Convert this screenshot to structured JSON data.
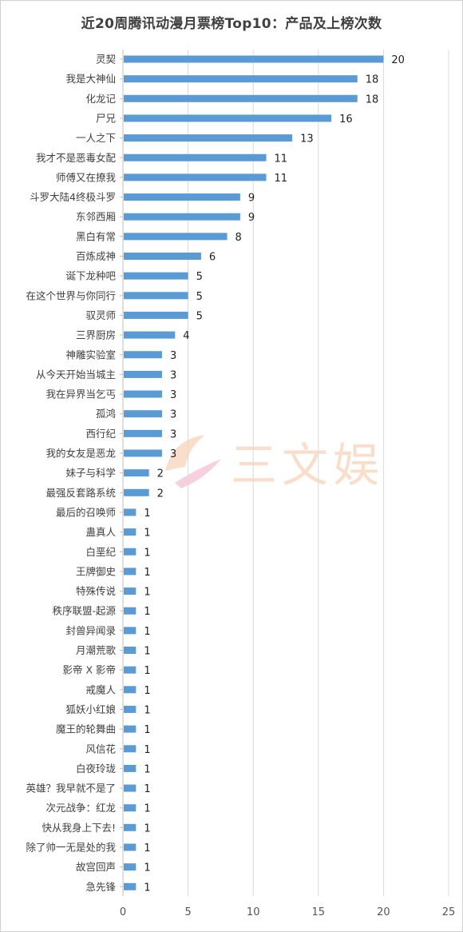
{
  "chart_data": {
    "type": "bar",
    "orientation": "horizontal",
    "title": "近20周腾讯动漫月票榜Top10：产品及上榜次数",
    "xlabel": "",
    "ylabel": "",
    "xlim": [
      0,
      25
    ],
    "x_ticks": [
      "0",
      "5",
      "10",
      "15",
      "20",
      "25"
    ],
    "grid": "vertical",
    "legend": "none",
    "bar_color": "#5b9bd5",
    "categories": [
      "灵契",
      "我是大神仙",
      "化龙记",
      "尸兄",
      "一人之下",
      "我才不是恶毒女配",
      "师傅又在撩我",
      "斗罗大陆4终极斗罗",
      "东邻西厢",
      "黑白有常",
      "百炼成神",
      "诞下龙种吧",
      "在这个世界与你同行",
      "驭灵师",
      "三界厨房",
      "神雕实验室",
      "从今天开始当城主",
      "我在异界当乞丐",
      "孤鸿",
      "西行纪",
      "我的女友是恶龙",
      "妹子与科学",
      "最强反套路系统",
      "最后的召唤师",
      "蛊真人",
      "白垩纪",
      "王牌御史",
      "特殊传说",
      "秩序联盟-起源",
      "封兽异闻录",
      "月潮荒歌",
      "影帝 X 影帝",
      "戒魔人",
      "狐妖小红娘",
      "魔王的轮舞曲",
      "风信花",
      "白夜玲珑",
      "英雄？我早就不是了",
      "次元战争：红龙",
      "快从我身上下去!",
      "除了帅一无是处的我",
      "故宫回声",
      "急先锋"
    ],
    "values": [
      20,
      18,
      18,
      16,
      13,
      11,
      11,
      9,
      9,
      8,
      6,
      5,
      5,
      5,
      4,
      3,
      3,
      3,
      3,
      3,
      3,
      2,
      2,
      1,
      1,
      1,
      1,
      1,
      1,
      1,
      1,
      1,
      1,
      1,
      1,
      1,
      1,
      1,
      1,
      1,
      1,
      1,
      1
    ],
    "value_labels": [
      "20",
      "18",
      "18",
      "16",
      "13",
      "11",
      "11",
      "9",
      "9",
      "8",
      "6",
      "5",
      "5",
      "5",
      "4",
      "3",
      "3",
      "3",
      "3",
      "3",
      "3",
      "2",
      "2",
      "1",
      "1",
      "1",
      "1",
      "1",
      "1",
      "1",
      "1",
      "1",
      "1",
      "1",
      "1",
      "1",
      "1",
      "1",
      "1",
      "1",
      "1",
      "1",
      "1"
    ]
  },
  "watermark": {
    "text": "三文娱",
    "color": "#f08a4b"
  }
}
